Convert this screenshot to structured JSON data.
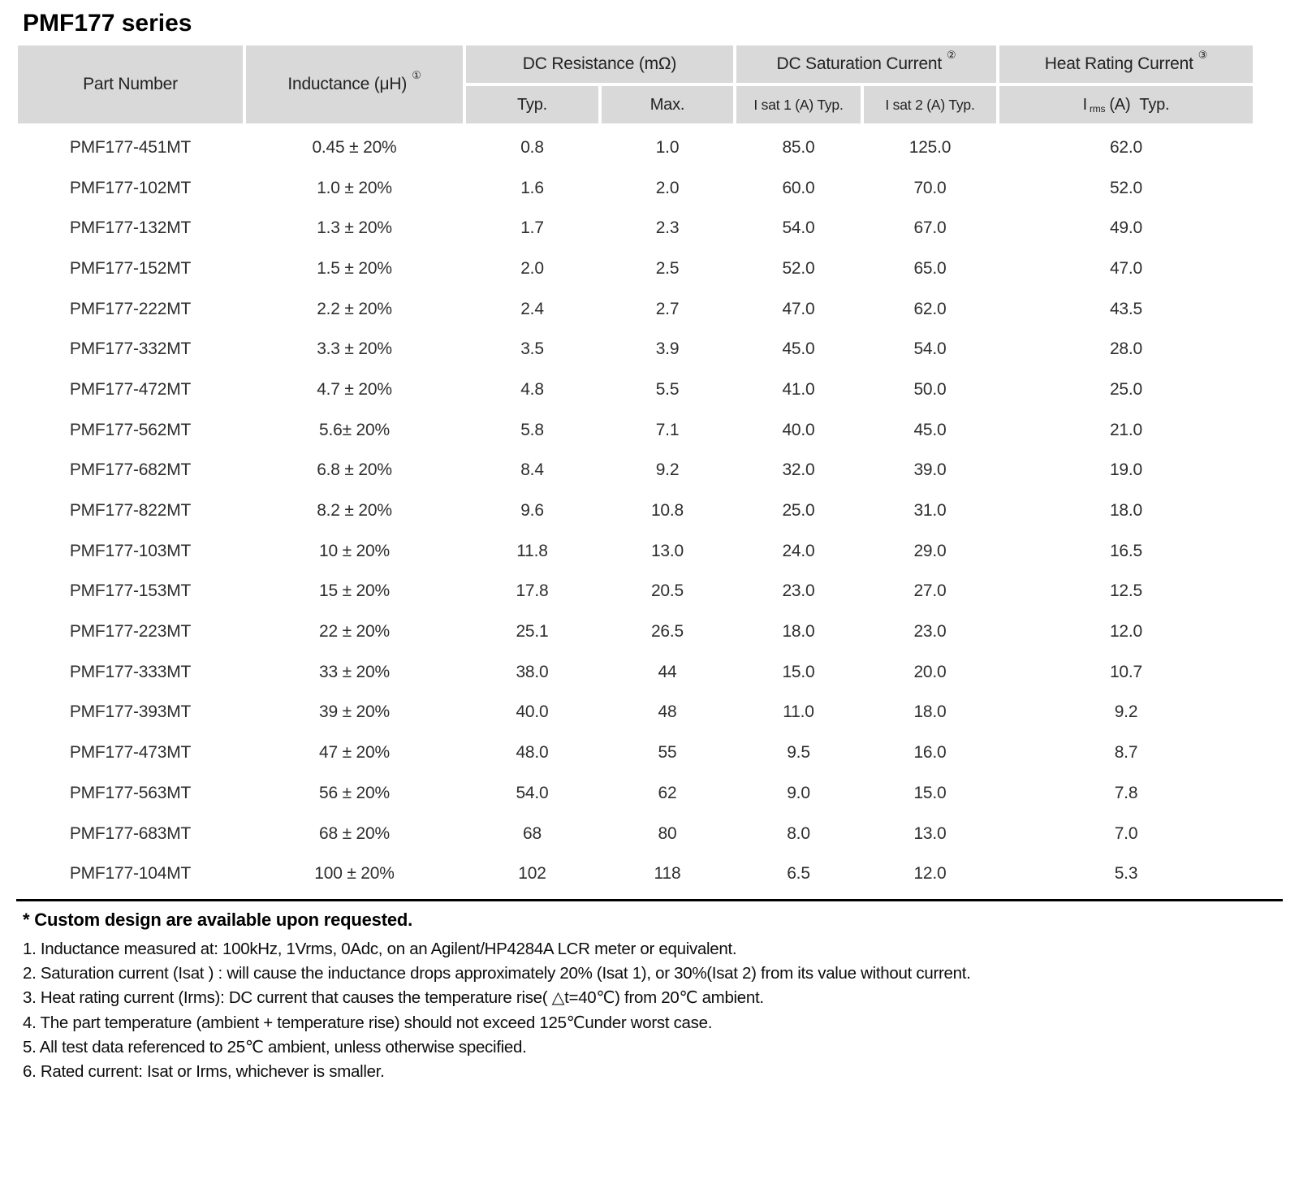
{
  "page": {
    "title": "PMF177 series"
  },
  "table": {
    "columns": {
      "part_number": "Part Number",
      "inductance": "Inductance (μH)",
      "inductance_sup": "①",
      "dc_resistance": "DC Resistance (mΩ)",
      "dc_saturation": "DC Saturation Current",
      "dc_saturation_sup": "②",
      "heat_rating": "Heat Rating Current",
      "heat_rating_sup": "③",
      "typ": "Typ.",
      "max": "Max.",
      "isat1": "I sat 1  (A)  Typ.",
      "isat2": "I sat 2  (A)  Typ.",
      "irms_pre": "I",
      "irms_sub": "rms",
      "irms_post": "(A) Typ."
    },
    "rows": [
      [
        "PMF177-451MT",
        "0.45 ± 20%",
        "0.8",
        "1.0",
        "85.0",
        "125.0",
        "62.0"
      ],
      [
        "PMF177-102MT",
        "1.0 ± 20%",
        "1.6",
        "2.0",
        "60.0",
        "70.0",
        "52.0"
      ],
      [
        "PMF177-132MT",
        "1.3 ± 20%",
        "1.7",
        "2.3",
        "54.0",
        "67.0",
        "49.0"
      ],
      [
        "PMF177-152MT",
        "1.5 ± 20%",
        "2.0",
        "2.5",
        "52.0",
        "65.0",
        "47.0"
      ],
      [
        "PMF177-222MT",
        "2.2 ± 20%",
        "2.4",
        "2.7",
        "47.0",
        "62.0",
        "43.5"
      ],
      [
        "PMF177-332MT",
        "3.3 ± 20%",
        "3.5",
        "3.9",
        "45.0",
        "54.0",
        "28.0"
      ],
      [
        "PMF177-472MT",
        "4.7 ± 20%",
        "4.8",
        "5.5",
        "41.0",
        "50.0",
        "25.0"
      ],
      [
        "PMF177-562MT",
        "5.6± 20%",
        "5.8",
        "7.1",
        "40.0",
        "45.0",
        "21.0"
      ],
      [
        "PMF177-682MT",
        "6.8 ± 20%",
        "8.4",
        "9.2",
        "32.0",
        "39.0",
        "19.0"
      ],
      [
        "PMF177-822MT",
        "8.2 ± 20%",
        "9.6",
        "10.8",
        "25.0",
        "31.0",
        "18.0"
      ],
      [
        "PMF177-103MT",
        "10 ± 20%",
        "11.8",
        "13.0",
        "24.0",
        "29.0",
        "16.5"
      ],
      [
        "PMF177-153MT",
        "15 ± 20%",
        "17.8",
        "20.5",
        "23.0",
        "27.0",
        "12.5"
      ],
      [
        "PMF177-223MT",
        "22 ± 20%",
        "25.1",
        "26.5",
        "18.0",
        "23.0",
        "12.0"
      ],
      [
        "PMF177-333MT",
        "33 ± 20%",
        "38.0",
        "44",
        "15.0",
        "20.0",
        "10.7"
      ],
      [
        "PMF177-393MT",
        "39 ± 20%",
        "40.0",
        "48",
        "11.0",
        "18.0",
        "9.2"
      ],
      [
        "PMF177-473MT",
        "47 ± 20%",
        "48.0",
        "55",
        "9.5",
        "16.0",
        "8.7"
      ],
      [
        "PMF177-563MT",
        "56 ± 20%",
        "54.0",
        "62",
        "9.0",
        "15.0",
        "7.8"
      ],
      [
        "PMF177-683MT",
        "68 ± 20%",
        "68",
        "80",
        "8.0",
        "13.0",
        "7.0"
      ],
      [
        "PMF177-104MT",
        "100 ± 20%",
        "102",
        "118",
        "6.5",
        "12.0",
        "5.3"
      ]
    ]
  },
  "notes": {
    "custom": "* Custom design are available upon requested.",
    "items": [
      "1. Inductance measured at: 100kHz, 1Vrms, 0Adc, on an Agilent/HP4284A LCR meter or equivalent.",
      "2. Saturation current (Isat ) : will cause the inductance drops approximately 20% (Isat 1), or 30%(Isat 2) from its value without current.",
      "3. Heat rating current (Irms): DC current that causes the temperature rise( △t=40℃) from 20℃ ambient.",
      "4. The part temperature (ambient + temperature rise) should not exceed 125℃under worst case.",
      "5. All test data referenced to 25℃ ambient, unless otherwise specified.",
      "6. Rated current: Isat or Irms, whichever is smaller."
    ]
  },
  "colors": {
    "header_bg": "#d9d9d9",
    "text": "#2e2e2e",
    "rule": "#000000"
  }
}
